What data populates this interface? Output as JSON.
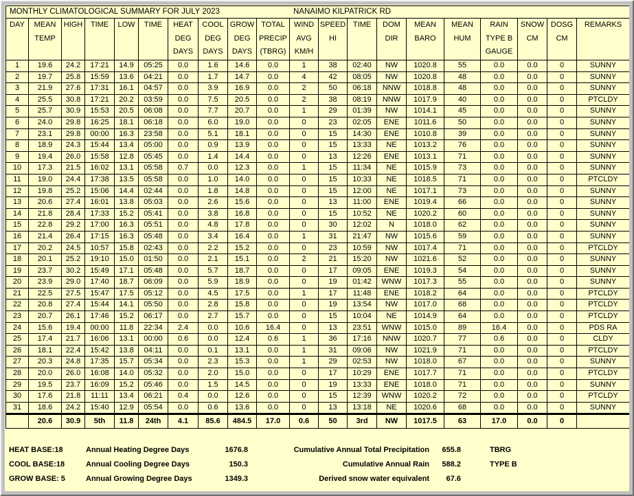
{
  "window": {
    "title_left": "MONTHLY CLIMATOLOGICAL SUMMARY FOR JULY 2023",
    "title_right": "NANAIMO KILPATRICK RD"
  },
  "colors": {
    "page_background": "#FFFFCC",
    "frame": "#C0C0C0",
    "grid": "#000000",
    "text": "#000000"
  },
  "table": {
    "columns": [
      {
        "id": "day",
        "lines": [
          "DAY"
        ]
      },
      {
        "id": "mean-temp",
        "lines": [
          "MEAN",
          "TEMP"
        ]
      },
      {
        "id": "high",
        "lines": [
          "HIGH"
        ]
      },
      {
        "id": "high-time",
        "lines": [
          "TIME"
        ]
      },
      {
        "id": "low",
        "lines": [
          "LOW"
        ]
      },
      {
        "id": "low-time",
        "lines": [
          "TIME"
        ]
      },
      {
        "id": "heat-deg-days",
        "lines": [
          "HEAT",
          "DEG",
          "DAYS"
        ]
      },
      {
        "id": "cool-deg-days",
        "lines": [
          "COOL",
          "DEG",
          "DAYS"
        ]
      },
      {
        "id": "grow-deg-days",
        "lines": [
          "GROW",
          "DEG",
          "DAYS"
        ]
      },
      {
        "id": "total-precip",
        "lines": [
          "TOTAL",
          "PRECIP",
          "(TBRG)"
        ]
      },
      {
        "id": "wind-avg",
        "lines": [
          "WIND",
          "AVG",
          "KM/H"
        ]
      },
      {
        "id": "speed-hi",
        "lines": [
          "SPEED",
          "HI"
        ]
      },
      {
        "id": "speed-time",
        "lines": [
          "TIME"
        ]
      },
      {
        "id": "dom-dir",
        "lines": [
          "DOM",
          "DIR"
        ]
      },
      {
        "id": "mean-baro",
        "lines": [
          "MEAN",
          "BARO"
        ]
      },
      {
        "id": "mean-hum",
        "lines": [
          "MEAN",
          "HUM"
        ]
      },
      {
        "id": "rain-type-b",
        "lines": [
          "RAIN",
          "TYPE B",
          "GAUGE"
        ]
      },
      {
        "id": "snow-cm",
        "lines": [
          "SNOW",
          "CM"
        ]
      },
      {
        "id": "dosg-cm",
        "lines": [
          "DOSG",
          "CM"
        ]
      },
      {
        "id": "remarks",
        "lines": [
          "REMARKS"
        ]
      }
    ],
    "rows": [
      [
        "1",
        "19.6",
        "24.2",
        "17:21",
        "14.9",
        "05:25",
        "0.0",
        "1.6",
        "14.6",
        "0.0",
        "1",
        "38",
        "02:40",
        "NW",
        "1020.8",
        "55",
        "0.0",
        "0.0",
        "0",
        "SUNNY"
      ],
      [
        "2",
        "19.7",
        "25.8",
        "15:59",
        "13.6",
        "04:21",
        "0.0",
        "1.7",
        "14.7",
        "0.0",
        "4",
        "42",
        "08:05",
        "NW",
        "1020.8",
        "48",
        "0.0",
        "0.0",
        "0",
        "SUNNY"
      ],
      [
        "3",
        "21.9",
        "27.6",
        "17:31",
        "16.1",
        "04:57",
        "0.0",
        "3.9",
        "16.9",
        "0.0",
        "2",
        "50",
        "06:18",
        "NNW",
        "1018.8",
        "48",
        "0.0",
        "0.0",
        "0",
        "SUNNY"
      ],
      [
        "4",
        "25.5",
        "30.8",
        "17:21",
        "20.2",
        "03:59",
        "0.0",
        "7.5",
        "20.5",
        "0.0",
        "2",
        "38",
        "08:19",
        "NNW",
        "1017.9",
        "40",
        "0.0",
        "0.0",
        "0",
        "PTCLDY"
      ],
      [
        "5",
        "25.7",
        "30.9",
        "15:53",
        "20.5",
        "06:08",
        "0.0",
        "7.7",
        "20.7",
        "0.0",
        "1",
        "29",
        "01:39",
        "NW",
        "1014.1",
        "45",
        "0.0",
        "0.0",
        "0",
        "SUNNY"
      ],
      [
        "6",
        "24.0",
        "29.8",
        "16:25",
        "18.1",
        "06:18",
        "0.0",
        "6.0",
        "19.0",
        "0.0",
        "0",
        "23",
        "02:05",
        "ENE",
        "1011.6",
        "50",
        "0.0",
        "0.0",
        "0",
        "SUNNY"
      ],
      [
        "7",
        "23.1",
        "29.8",
        "00:00",
        "16.3",
        "23:58",
        "0.0",
        "5.1",
        "18.1",
        "0.0",
        "0",
        "15",
        "14:30",
        "ENE",
        "1010.8",
        "39",
        "0.0",
        "0.0",
        "0",
        "SUNNY"
      ],
      [
        "8",
        "18.9",
        "24.3",
        "15:44",
        "13.4",
        "05:00",
        "0.0",
        "0.9",
        "13.9",
        "0.0",
        "0",
        "15",
        "13:33",
        "NE",
        "1013.2",
        "76",
        "0.0",
        "0.0",
        "0",
        "SUNNY"
      ],
      [
        "9",
        "19.4",
        "26.0",
        "15:58",
        "12.8",
        "05:45",
        "0.0",
        "1.4",
        "14.4",
        "0.0",
        "0",
        "13",
        "12:26",
        "ENE",
        "1013.1",
        "71",
        "0.0",
        "0.0",
        "0",
        "SUNNY"
      ],
      [
        "10",
        "17.3",
        "21.5",
        "16:02",
        "13.1",
        "05:58",
        "0.7",
        "0.0",
        "12.3",
        "0.0",
        "1",
        "15",
        "11:34",
        "NE",
        "1015.9",
        "73",
        "0.0",
        "0.0",
        "0",
        "SUNNY"
      ],
      [
        "11",
        "19.0",
        "24.4",
        "17:38",
        "13.5",
        "05:58",
        "0.0",
        "1.0",
        "14.0",
        "0.0",
        "0",
        "15",
        "10:33",
        "NE",
        "1018.5",
        "71",
        "0.0",
        "0.0",
        "0",
        "PTCLDY"
      ],
      [
        "12",
        "19.8",
        "25.2",
        "15:06",
        "14.4",
        "02:44",
        "0.0",
        "1.8",
        "14.8",
        "0.0",
        "0",
        "15",
        "12:00",
        "NE",
        "1017.1",
        "73",
        "0.0",
        "0.0",
        "0",
        "SUNNY"
      ],
      [
        "13",
        "20.6",
        "27.4",
        "16:01",
        "13.8",
        "05:03",
        "0.0",
        "2.6",
        "15.6",
        "0.0",
        "0",
        "13",
        "11:00",
        "ENE",
        "1019.4",
        "66",
        "0.0",
        "0.0",
        "0",
        "SUNNY"
      ],
      [
        "14",
        "21.8",
        "28.4",
        "17:33",
        "15.2",
        "05:41",
        "0.0",
        "3.8",
        "16.8",
        "0.0",
        "0",
        "15",
        "10:52",
        "NE",
        "1020.2",
        "60",
        "0.0",
        "0.0",
        "0",
        "SUNNY"
      ],
      [
        "15",
        "22.8",
        "29.2",
        "17:00",
        "16.3",
        "05:51",
        "0.0",
        "4.8",
        "17.8",
        "0.0",
        "0",
        "30",
        "12:02",
        "N",
        "1018.0",
        "62",
        "0.0",
        "0.0",
        "0",
        "SUNNY"
      ],
      [
        "16",
        "21.4",
        "26.4",
        "17:15",
        "16.3",
        "05:48",
        "0.0",
        "3.4",
        "16.4",
        "0.0",
        "1",
        "31",
        "21:47",
        "NW",
        "1015.6",
        "59",
        "0.0",
        "0.0",
        "0",
        "SUNNY"
      ],
      [
        "17",
        "20.2",
        "24.5",
        "10:57",
        "15.8",
        "02:43",
        "0.0",
        "2.2",
        "15.2",
        "0.0",
        "0",
        "23",
        "10:59",
        "NW",
        "1017.4",
        "71",
        "0.0",
        "0.0",
        "0",
        "PTCLDY"
      ],
      [
        "18",
        "20.1",
        "25.2",
        "19:10",
        "15.0",
        "01:50",
        "0.0",
        "2.1",
        "15.1",
        "0.0",
        "2",
        "21",
        "15:20",
        "NW",
        "1021.6",
        "52",
        "0.0",
        "0.0",
        "0",
        "SUNNY"
      ],
      [
        "19",
        "23.7",
        "30.2",
        "15:49",
        "17.1",
        "05:48",
        "0.0",
        "5.7",
        "18.7",
        "0.0",
        "0",
        "17",
        "09:05",
        "ENE",
        "1019.3",
        "54",
        "0.0",
        "0.0",
        "0",
        "SUNNY"
      ],
      [
        "20",
        "23.9",
        "29.0",
        "17:40",
        "18.7",
        "06:09",
        "0.0",
        "5.9",
        "18.9",
        "0.0",
        "0",
        "19",
        "01:42",
        "WNW",
        "1017.3",
        "55",
        "0.0",
        "0.0",
        "0",
        "SUNNY"
      ],
      [
        "21",
        "22.5",
        "27.5",
        "15:47",
        "17.5",
        "05:12",
        "0.0",
        "4.5",
        "17.5",
        "0.0",
        "1",
        "17",
        "11:48",
        "ENE",
        "1018.2",
        "64",
        "0.0",
        "0.0",
        "0",
        "PTCLDY"
      ],
      [
        "22",
        "20.8",
        "27.4",
        "15:44",
        "14.1",
        "05:50",
        "0.0",
        "2.8",
        "15.8",
        "0.0",
        "0",
        "19",
        "13:54",
        "NW",
        "1017.0",
        "68",
        "0.0",
        "0.0",
        "0",
        "PTCLDY"
      ],
      [
        "23",
        "20.7",
        "26.1",
        "17:46",
        "15.2",
        "06:17",
        "0.0",
        "2.7",
        "15.7",
        "0.0",
        "0",
        "15",
        "10:04",
        "NE",
        "1014.9",
        "64",
        "0.0",
        "0.0",
        "0",
        "PTCLDY"
      ],
      [
        "24",
        "15.6",
        "19.4",
        "00:00",
        "11.8",
        "22:34",
        "2.4",
        "0.0",
        "10.6",
        "16.4",
        "0",
        "13",
        "23:51",
        "WNW",
        "1015.0",
        "89",
        "16.4",
        "0.0",
        "0",
        "PDS RA"
      ],
      [
        "25",
        "17.4",
        "21.7",
        "16:06",
        "13.1",
        "00:00",
        "0.6",
        "0.0",
        "12.4",
        "0.6",
        "1",
        "36",
        "17:16",
        "NNW",
        "1020.7",
        "77",
        "0.6",
        "0.0",
        "0",
        "CLDY"
      ],
      [
        "26",
        "18.1",
        "22.4",
        "15:42",
        "13.8",
        "04:11",
        "0.0",
        "0.1",
        "13.1",
        "0.0",
        "1",
        "31",
        "09:06",
        "NW",
        "1021.9",
        "71",
        "0.0",
        "0.0",
        "0",
        "PTCLDY"
      ],
      [
        "27",
        "20.3",
        "24.8",
        "17:35",
        "15.7",
        "05:34",
        "0.0",
        "2.3",
        "15.3",
        "0.0",
        "1",
        "29",
        "02:53",
        "NW",
        "1018.0",
        "67",
        "0.0",
        "0.0",
        "0",
        "SUNNY"
      ],
      [
        "28",
        "20.0",
        "26.0",
        "16:08",
        "14.0",
        "05:32",
        "0.0",
        "2.0",
        "15.0",
        "0.0",
        "0",
        "17",
        "10:29",
        "ENE",
        "1017.7",
        "71",
        "0.0",
        "0.0",
        "0",
        "PTCLDY"
      ],
      [
        "29",
        "19.5",
        "23.7",
        "16:09",
        "15.2",
        "05:46",
        "0.0",
        "1.5",
        "14.5",
        "0.0",
        "0",
        "19",
        "13:33",
        "ENE",
        "1018.0",
        "71",
        "0.0",
        "0.0",
        "0",
        "SUNNY"
      ],
      [
        "30",
        "17.6",
        "21.8",
        "11:11",
        "13.4",
        "06:21",
        "0.4",
        "0.0",
        "12.6",
        "0.0",
        "0",
        "15",
        "12:39",
        "WNW",
        "1020.2",
        "72",
        "0.0",
        "0.0",
        "0",
        "PTCLDY"
      ],
      [
        "31",
        "18.6",
        "24.2",
        "15:40",
        "12.9",
        "05:54",
        "0.0",
        "0.6",
        "13.6",
        "0.0",
        "0",
        "13",
        "13:18",
        "NE",
        "1020.6",
        "68",
        "0.0",
        "0.0",
        "0",
        "SUNNY"
      ]
    ],
    "summary": [
      "",
      "20.6",
      "30.9",
      "5th",
      "11.8",
      "24th",
      "4.1",
      "85.6",
      "484.5",
      "17.0",
      "0.6",
      "50",
      "3rd",
      "NW",
      "1017.5",
      "63",
      "17.0",
      "0.0",
      "0",
      ""
    ]
  },
  "footer": {
    "rows": [
      {
        "base": "HEAT BASE:18",
        "label": "Annual Heating Degree Days",
        "value": "1676.8",
        "label2": "Cumulative Annual Total Precipitation",
        "value2": "655.8",
        "note": "TBRG"
      },
      {
        "base": "COOL BASE:18",
        "label": "Annual Cooling Degree Days",
        "value": "150.3",
        "label2": "Cumulative Annual Rain",
        "value2": "588.2",
        "note": "TYPE B"
      },
      {
        "base": "GROW BASE: 5",
        "label": "Annual Growing Degree Days",
        "value": "1349.3",
        "label2": "Derived snow water equivalent",
        "value2": "67.6",
        "note": ""
      }
    ]
  }
}
